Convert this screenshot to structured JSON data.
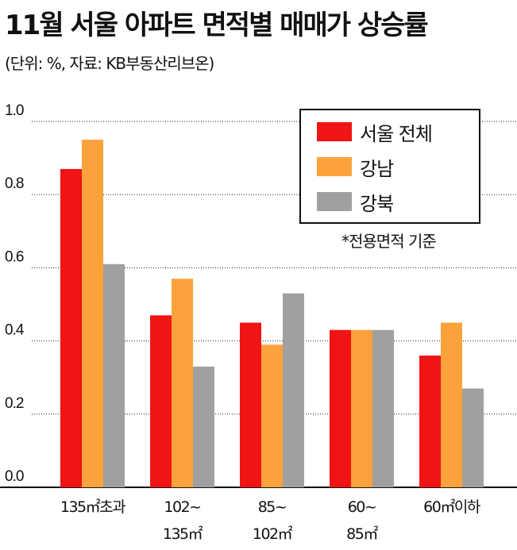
{
  "header": {
    "title": "11월 서울 아파트 면적별 매매가 상승률",
    "subtitle": "(단위: %, 자료: KB부동산리브온)"
  },
  "note": "*전용면적 기준",
  "chart_data": {
    "type": "bar",
    "categories": [
      [
        "135㎡초과"
      ],
      [
        "102~",
        "135㎡"
      ],
      [
        "85~",
        "102㎡"
      ],
      [
        "60~",
        "85㎡"
      ],
      [
        "60㎡이하"
      ]
    ],
    "series": [
      {
        "name": "서울 전체",
        "color": "#f01414",
        "values": [
          0.87,
          0.47,
          0.45,
          0.43,
          0.36
        ]
      },
      {
        "name": "강남",
        "color": "#fca23c",
        "values": [
          0.95,
          0.57,
          0.39,
          0.43,
          0.45
        ]
      },
      {
        "name": "강북",
        "color": "#a0a0a0",
        "values": [
          0.61,
          0.33,
          0.53,
          0.43,
          0.27
        ]
      }
    ],
    "yticks": [
      "0.0",
      "0.2",
      "0.4",
      "0.6",
      "0.8",
      "1.0"
    ],
    "ylim": [
      0,
      1.0
    ],
    "grid": "dotted horizontal",
    "legend_position": "top-right"
  }
}
